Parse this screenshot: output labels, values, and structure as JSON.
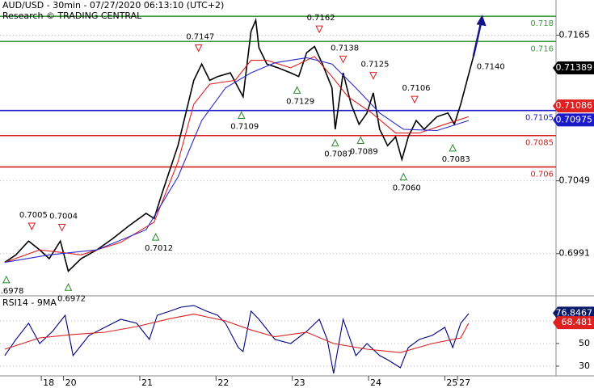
{
  "chart_data": [
    {
      "type": "line",
      "title": "AUD/USD - 30min - 07/27/2020 06:13:10 (UTC+2)",
      "subtitle": "Research © TRADING CENTRAL",
      "xlim": [
        0,
        350
      ],
      "xticks": [
        {
          "value": 26,
          "label": "18"
        },
        {
          "value": 40,
          "label": "20"
        },
        {
          "value": 88,
          "label": "21"
        },
        {
          "value": 136,
          "label": "22"
        },
        {
          "value": 184,
          "label": "23"
        },
        {
          "value": 232,
          "label": "24"
        },
        {
          "value": 280,
          "label": "25"
        },
        {
          "value": 288,
          "label": "27"
        }
      ],
      "ylim": [
        0.6958,
        0.7193
      ],
      "yticks": [
        0.7165,
        0.7049,
        0.6991
      ],
      "grid": true,
      "series": [
        {
          "color": "#000000",
          "x": [
            3,
            10,
            18,
            25,
            31,
            38,
            43,
            51,
            61,
            71,
            81,
            92,
            97,
            102,
            107,
            112,
            117,
            122,
            127,
            132,
            137,
            145,
            150,
            153,
            158,
            161,
            163,
            168,
            175,
            183,
            188,
            193,
            198,
            203,
            209,
            211,
            216,
            221,
            226,
            231,
            235,
            239,
            244,
            249,
            253,
            257,
            262,
            267,
            275,
            282,
            286,
            290,
            294,
            298
          ],
          "values": [
            0.6984,
            0.699,
            0.7001,
            0.6994,
            0.6987,
            0.7001,
            0.6977,
            0.6987,
            0.6994,
            0.7003,
            0.7013,
            0.7023,
            0.7019,
            0.7039,
            0.7058,
            0.7077,
            0.7103,
            0.7129,
            0.7142,
            0.7129,
            0.7132,
            0.7135,
            0.7123,
            0.7116,
            0.7168,
            0.7177,
            0.7155,
            0.7142,
            0.7139,
            0.7135,
            0.7132,
            0.7151,
            0.7156,
            0.7142,
            0.7123,
            0.709,
            0.7135,
            0.711,
            0.7094,
            0.7103,
            0.7119,
            0.709,
            0.7077,
            0.7084,
            0.7066,
            0.7084,
            0.7097,
            0.709,
            0.71,
            0.7103,
            0.7094,
            0.711,
            0.7129,
            0.7148
          ]
        },
        {
          "color": "#e02020",
          "x": [
            3,
            25,
            51,
            76,
            97,
            112,
            122,
            132,
            148,
            158,
            168,
            183,
            198,
            209,
            219,
            234,
            249,
            264,
            280,
            295
          ],
          "values": [
            0.6984,
            0.6994,
            0.699,
            0.7,
            0.7016,
            0.7064,
            0.711,
            0.7126,
            0.7129,
            0.7145,
            0.7145,
            0.7139,
            0.7148,
            0.7132,
            0.7116,
            0.7103,
            0.7087,
            0.7087,
            0.7094,
            0.71
          ]
        },
        {
          "color": "#2a2ad0",
          "x": [
            3,
            31,
            61,
            92,
            112,
            127,
            142,
            158,
            173,
            193,
            209,
            224,
            239,
            254,
            275,
            295
          ],
          "values": [
            0.6984,
            0.699,
            0.6994,
            0.701,
            0.7052,
            0.7097,
            0.7123,
            0.7135,
            0.7143,
            0.7147,
            0.7142,
            0.7123,
            0.7103,
            0.709,
            0.7089,
            0.7097
          ]
        }
      ],
      "levels": [
        {
          "value": 0.718,
          "color": "#3a9a3a"
        },
        {
          "value": 0.716,
          "color": "#3a9a3a"
        },
        {
          "value": 0.7105,
          "color": "#1a1ac8"
        },
        {
          "value": 0.7085,
          "color": "#d42020"
        },
        {
          "value": 0.706,
          "color": "#d42020"
        }
      ],
      "price_tags": [
        {
          "value": 0.71389,
          "color": "#000000"
        },
        {
          "value": 0.71086,
          "color": "#e02020"
        },
        {
          "value": 0.70975,
          "color": "#1a1ac8"
        }
      ],
      "pivots": [
        {
          "value": 0.6978,
          "label": "0.6978",
          "x": 4,
          "kind": "low"
        },
        {
          "value": 0.7005,
          "label": "0.7005",
          "x": 20,
          "kind": "high"
        },
        {
          "value": 0.7004,
          "label": "0.7004",
          "x": 39,
          "kind": "high"
        },
        {
          "value": 0.6972,
          "label": "0.6972",
          "x": 43,
          "kind": "low"
        },
        {
          "value": 0.7012,
          "label": "0.7012",
          "x": 98,
          "kind": "low"
        },
        {
          "value": 0.7147,
          "label": "0.7147",
          "x": 125,
          "kind": "high"
        },
        {
          "value": 0.7109,
          "label": "0.7109",
          "x": 152,
          "kind": "low"
        },
        {
          "value": 0.7162,
          "label": "0.7162",
          "x": 201,
          "kind": "high"
        },
        {
          "value": 0.7129,
          "label": "0.7129",
          "x": 187,
          "kind": "low"
        },
        {
          "value": 0.7138,
          "label": "0.7138",
          "x": 216,
          "kind": "high"
        },
        {
          "value": 0.7087,
          "label": "0.7087",
          "x": 211,
          "kind": "low"
        },
        {
          "value": 0.7089,
          "label": "0.7089",
          "x": 227,
          "kind": "low"
        },
        {
          "value": 0.7125,
          "label": "0.7125",
          "x": 235,
          "kind": "high"
        },
        {
          "value": 0.7106,
          "label": "0.7106",
          "x": 261,
          "kind": "high"
        },
        {
          "value": 0.706,
          "label": "0.7060",
          "x": 254,
          "kind": "low"
        },
        {
          "value": 0.7083,
          "label": "0.7083",
          "x": 285,
          "kind": "low"
        },
        {
          "value": 0.714,
          "label": "0.7140",
          "x": 300,
          "kind": "target"
        }
      ],
      "target": {
        "x": 303,
        "value": 0.718
      }
    },
    {
      "type": "line",
      "title": "RSI14 - 9MA",
      "xlim": [
        0,
        350
      ],
      "ylim": [
        21.4,
        90.7
      ],
      "yticks": [
        50,
        30
      ],
      "grid_values": [
        70,
        50,
        30
      ],
      "series": [
        {
          "color": "#000080",
          "x": [
            3,
            10,
            18,
            25,
            33,
            41,
            46,
            56,
            66,
            76,
            86,
            94,
            99,
            107,
            114,
            122,
            130,
            137,
            142,
            150,
            153,
            158,
            163,
            173,
            183,
            193,
            201,
            206,
            210,
            216,
            224,
            231,
            239,
            244,
            252,
            257,
            264,
            272,
            280,
            285,
            290,
            295
          ],
          "values": [
            39.3,
            53.6,
            67.9,
            50,
            60.7,
            75,
            39.3,
            57.1,
            64.3,
            71.4,
            67.9,
            53.6,
            75,
            78.6,
            82.1,
            83.6,
            78.6,
            75,
            67.9,
            46.4,
            42.9,
            78.6,
            71.4,
            53.6,
            50,
            60.7,
            71.4,
            53.6,
            23.6,
            71.4,
            39.3,
            50,
            39.3,
            35.7,
            28.6,
            46.4,
            53.6,
            57.1,
            64.3,
            46.4,
            67.9,
            76.4
          ]
        },
        {
          "color": "#e02020",
          "x": [
            3,
            25,
            46,
            66,
            86,
            107,
            122,
            142,
            158,
            173,
            193,
            210,
            231,
            252,
            272,
            290,
            295
          ],
          "values": [
            45,
            55,
            58,
            60,
            65,
            72,
            76,
            70,
            62,
            56,
            60,
            50,
            45,
            42,
            50,
            55,
            68
          ]
        }
      ],
      "value_tags": [
        {
          "value": 76.8467,
          "color": "#0a1a6a"
        },
        {
          "value": 68.481,
          "color": "#e02020"
        }
      ]
    }
  ]
}
